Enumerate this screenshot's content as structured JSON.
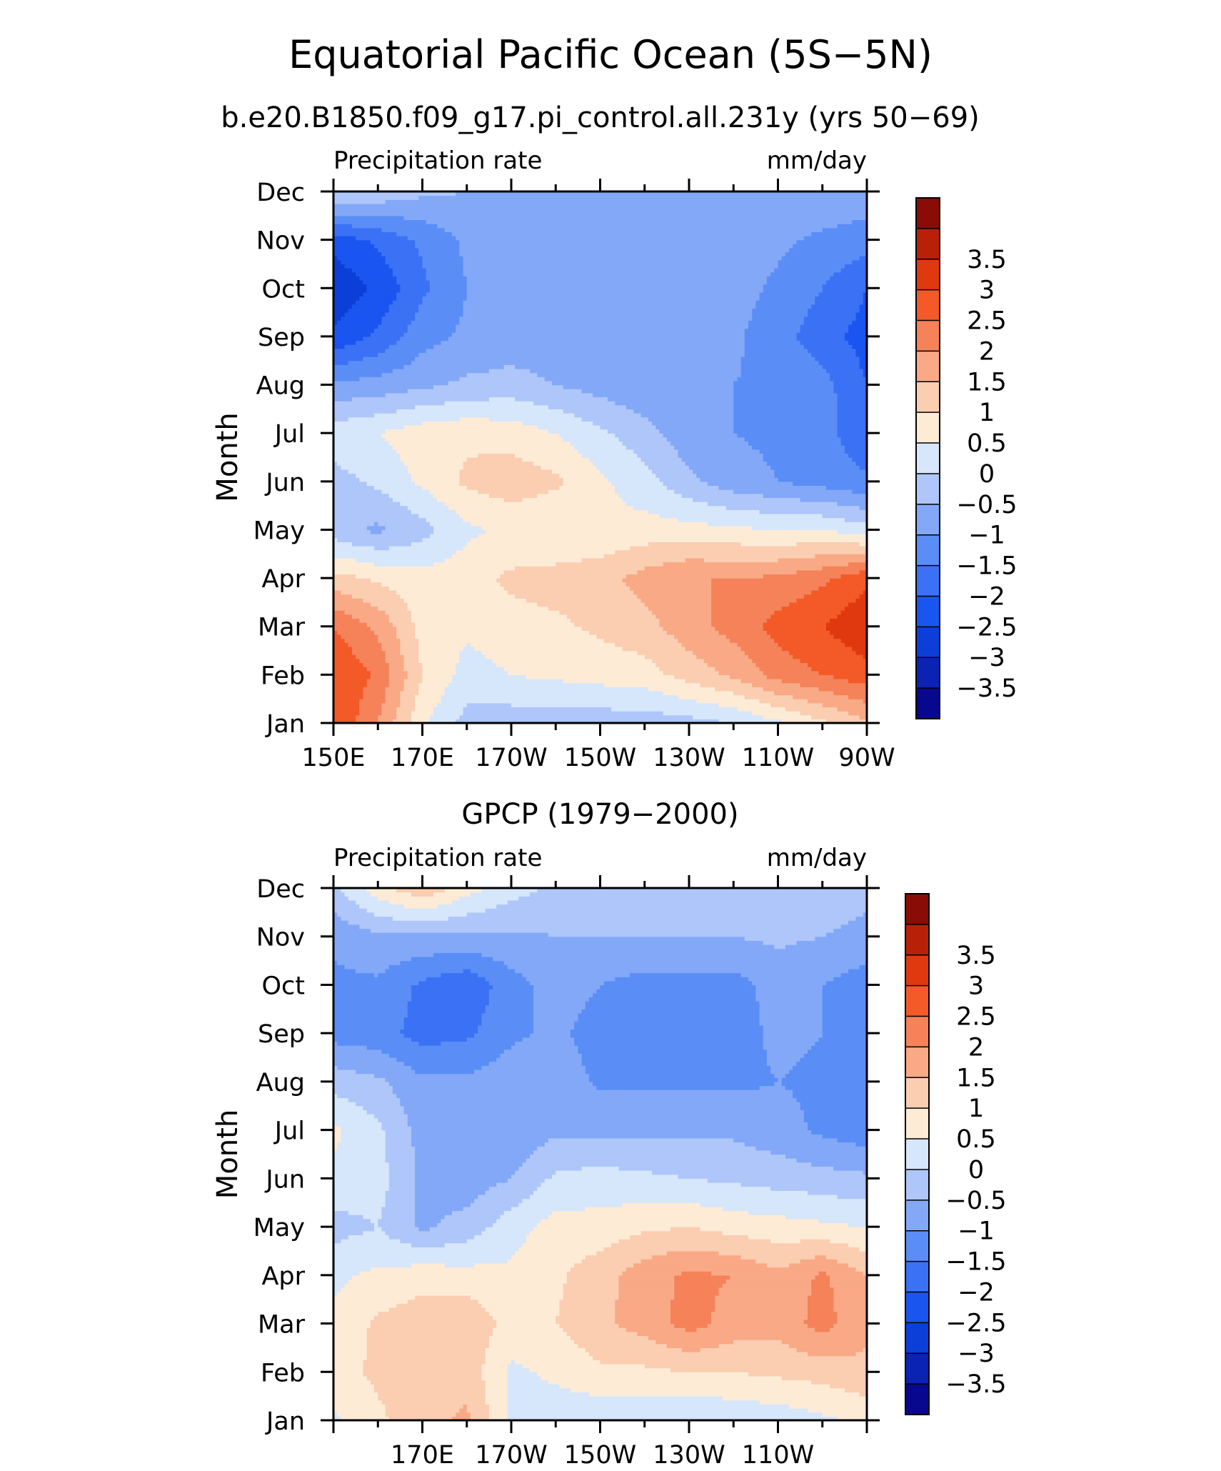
{
  "figure": {
    "title": "Equatorial Pacific Ocean (5S−5N)"
  },
  "colorbar": {
    "colors": [
      "#08088f",
      "#0a23b4",
      "#0c3fd8",
      "#1a55f0",
      "#3b72f5",
      "#5a8ef6",
      "#83a8f8",
      "#aec6f9",
      "#d6e6fb",
      "#fdebd6",
      "#fbcdb1",
      "#f9a985",
      "#f58259",
      "#f35a28",
      "#e0390f",
      "#b82008",
      "#8a0c06"
    ],
    "tick_labels": [
      "−3.5",
      "−3",
      "−2.5",
      "−2",
      "−1.5",
      "−1",
      "−0.5",
      "0",
      "0.5",
      "1",
      "1.5",
      "2",
      "2.5",
      "3",
      "3.5"
    ]
  },
  "chart_data": [
    {
      "type": "heatmap",
      "title": "b.e20.B1850.f09_g17.pi_control.all.231y (yrs 50−69)",
      "left_label": "Precipitation rate",
      "right_label": "mm/day",
      "ylabel": "Month",
      "xlabel": "",
      "x": [
        150,
        160,
        170,
        180,
        190,
        200,
        210,
        220,
        230,
        240,
        250,
        260,
        270
      ],
      "x_tick_values": [
        150,
        170,
        190,
        210,
        230,
        250,
        270
      ],
      "x_tick_labels": [
        "150E",
        "170E",
        "170W",
        "150W",
        "130W",
        "110W",
        "90W"
      ],
      "y_tick_labels": [
        "Jan",
        "Feb",
        "Mar",
        "Apr",
        "May",
        "Jun",
        "Jul",
        "Aug",
        "Sep",
        "Oct",
        "Nov",
        "Dec"
      ],
      "xlim": [
        150,
        270
      ],
      "ylim": [
        1,
        12
      ],
      "levels": [
        -3.5,
        -3,
        -2.5,
        -2,
        -1.5,
        -1,
        -0.5,
        0,
        0.5,
        1,
        1.5,
        2,
        2.5,
        3,
        3.5
      ],
      "z": [
        [
          3.0,
          2.0,
          0.6,
          -0.2,
          -0.3,
          -0.3,
          -0.3,
          -0.3,
          -0.2,
          0.0,
          0.4,
          0.9,
          1.4
        ],
        [
          3.0,
          2.4,
          1.0,
          0.3,
          0.5,
          0.6,
          0.7,
          0.8,
          1.2,
          1.6,
          2.2,
          2.5,
          2.8
        ],
        [
          2.5,
          1.9,
          0.8,
          0.6,
          0.8,
          0.9,
          1.1,
          1.3,
          1.8,
          2.2,
          2.7,
          3.0,
          3.4
        ],
        [
          1.2,
          0.9,
          0.7,
          0.8,
          1.1,
          1.2,
          1.3,
          1.7,
          2.0,
          2.0,
          2.1,
          2.4,
          2.9
        ],
        [
          -0.3,
          -0.6,
          -0.2,
          0.4,
          0.6,
          0.5,
          0.6,
          0.7,
          0.7,
          0.6,
          0.5,
          0.5,
          0.2
        ],
        [
          -0.2,
          0.1,
          0.6,
          1.1,
          1.3,
          1.1,
          0.6,
          0.2,
          -0.4,
          -0.8,
          -1.0,
          -1.2,
          -1.4
        ],
        [
          0.3,
          0.5,
          0.8,
          0.9,
          0.8,
          0.5,
          0.1,
          -0.3,
          -0.8,
          -1.0,
          -1.1,
          -1.3,
          -1.9
        ],
        [
          -0.9,
          -0.8,
          -0.6,
          -0.4,
          -0.3,
          -0.5,
          -0.7,
          -0.9,
          -1.0,
          -1.0,
          -1.1,
          -1.3,
          -2.0
        ],
        [
          -2.4,
          -1.9,
          -1.2,
          -0.9,
          -0.8,
          -0.8,
          -0.8,
          -0.8,
          -0.8,
          -0.9,
          -1.3,
          -1.8,
          -2.2
        ],
        [
          -2.9,
          -2.4,
          -1.6,
          -1.0,
          -0.8,
          -0.7,
          -0.7,
          -0.7,
          -0.7,
          -0.8,
          -1.1,
          -1.5,
          -2.0
        ],
        [
          -2.3,
          -1.9,
          -1.4,
          -0.9,
          -0.7,
          -0.7,
          -0.7,
          -0.7,
          -0.7,
          -0.8,
          -0.9,
          -1.1,
          -1.3
        ],
        [
          0.1,
          -0.1,
          -0.4,
          -0.5,
          -0.6,
          -0.6,
          -0.6,
          -0.6,
          -0.6,
          -0.6,
          -0.6,
          -0.6,
          -0.6
        ]
      ]
    },
    {
      "type": "heatmap",
      "title": "GPCP (1979−2000)",
      "left_label": "Precipitation rate",
      "right_label": "mm/day",
      "ylabel": "Month",
      "xlabel": "",
      "x": [
        150,
        160,
        170,
        180,
        190,
        200,
        210,
        220,
        230,
        240,
        250,
        260,
        270
      ],
      "x_tick_values": [
        170,
        190,
        210,
        230,
        250
      ],
      "x_tick_labels": [
        "170E",
        "170W",
        "150W",
        "130W",
        "110W"
      ],
      "y_tick_labels": [
        "Jan",
        "Feb",
        "Mar",
        "Apr",
        "May",
        "Jun",
        "Jul",
        "Aug",
        "Sep",
        "Oct",
        "Nov",
        "Dec"
      ],
      "xlim": [
        150,
        270
      ],
      "ylim": [
        1,
        12
      ],
      "levels": [
        -3.5,
        -3,
        -2.5,
        -2,
        -1.5,
        -1,
        -0.5,
        0,
        0.5,
        1,
        1.5,
        2,
        2.5,
        3,
        3.5
      ],
      "z": [
        [
          0.4,
          0.9,
          1.3,
          1.6,
          0.4,
          0.2,
          0.1,
          0.1,
          0.0,
          0.1,
          0.2,
          0.4,
          0.6
        ],
        [
          0.8,
          1.1,
          1.2,
          1.3,
          0.4,
          0.6,
          0.9,
          0.9,
          1.0,
          1.0,
          1.1,
          1.2,
          1.4
        ],
        [
          0.6,
          1.1,
          1.3,
          1.4,
          0.8,
          1.0,
          1.4,
          1.7,
          2.2,
          1.8,
          1.7,
          2.2,
          1.6
        ],
        [
          0.4,
          0.6,
          0.8,
          0.7,
          0.6,
          0.9,
          1.3,
          1.8,
          2.1,
          2.0,
          1.6,
          2.1,
          1.5
        ],
        [
          -0.2,
          0.0,
          -0.6,
          -0.3,
          0.3,
          0.7,
          0.7,
          0.9,
          1.0,
          0.8,
          0.7,
          0.6,
          0.5
        ],
        [
          0.4,
          0.2,
          -0.6,
          -0.8,
          -0.5,
          0.1,
          0.2,
          0.1,
          0.0,
          -0.1,
          -0.2,
          -0.3,
          -0.4
        ],
        [
          0.6,
          0.1,
          -0.7,
          -1.0,
          -0.9,
          -0.6,
          -0.6,
          -0.6,
          -0.6,
          -0.6,
          -0.8,
          -1.1,
          -1.3
        ],
        [
          -0.2,
          -0.4,
          -0.9,
          -0.9,
          -0.7,
          -0.7,
          -1.1,
          -1.1,
          -1.1,
          -1.1,
          -1.0,
          -1.1,
          -1.2
        ],
        [
          -1.2,
          -1.3,
          -1.7,
          -1.6,
          -1.1,
          -0.9,
          -1.2,
          -1.3,
          -1.3,
          -1.2,
          -0.9,
          -1.0,
          -1.2
        ],
        [
          -1.1,
          -1.1,
          -1.6,
          -1.9,
          -1.2,
          -0.8,
          -1.0,
          -1.2,
          -1.2,
          -1.2,
          -0.8,
          -1.0,
          -1.3
        ],
        [
          -0.9,
          -0.6,
          -0.6,
          -0.6,
          -0.6,
          -0.5,
          -0.5,
          -0.5,
          -0.5,
          -0.5,
          -0.4,
          -0.5,
          -0.6
        ],
        [
          -0.1,
          0.8,
          1.4,
          0.7,
          0.2,
          -0.1,
          -0.4,
          -0.4,
          -0.3,
          -0.3,
          -0.3,
          -0.3,
          -0.4
        ]
      ]
    }
  ]
}
